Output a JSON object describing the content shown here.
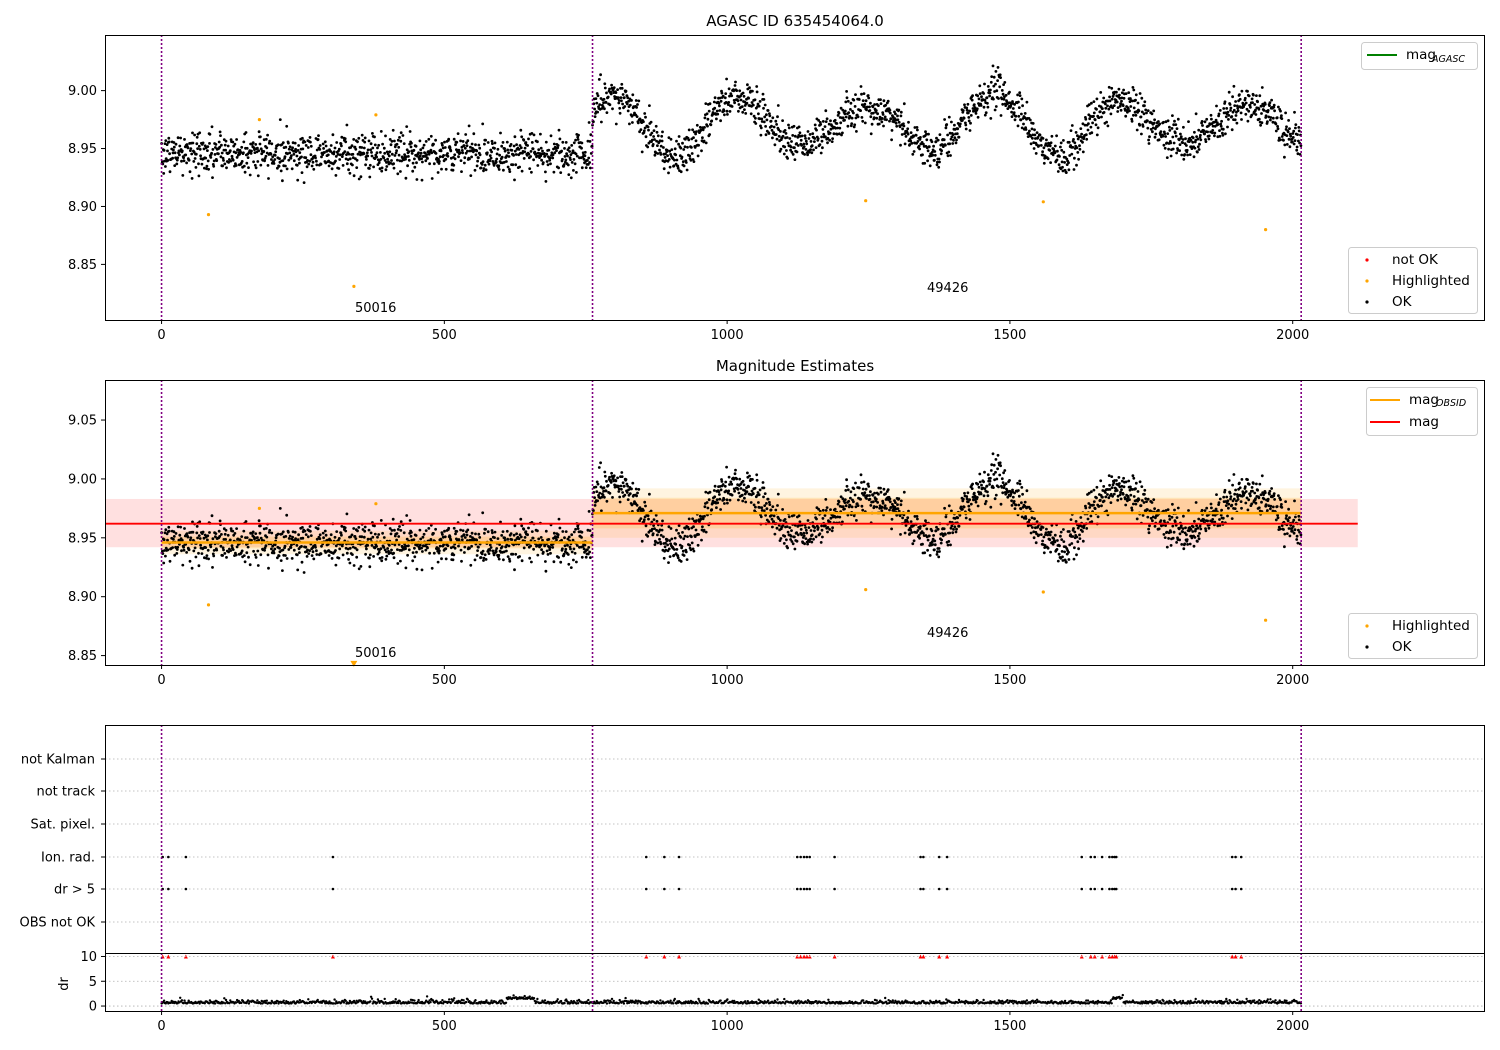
{
  "chart_data": [
    {
      "type": "scatter",
      "title": "AGASC ID 635454064.0",
      "xlim": [
        -100,
        2340
      ],
      "ylim": [
        8.802,
        9.048
      ],
      "x_ticks": [
        0,
        500,
        1000,
        1500,
        2000
      ],
      "y_ticks": [
        8.85,
        8.9,
        8.95,
        9.0
      ],
      "y_tick_labels": [
        "8.85",
        "8.90",
        "8.95",
        "9.00"
      ],
      "obs_boundaries": [
        0,
        762,
        2015
      ],
      "annotations": [
        {
          "text": "50016",
          "x": 340,
          "y": 8.81
        },
        {
          "text": "49426",
          "x": 1350,
          "y": 8.827
        }
      ],
      "mag_agasc_line": {
        "value": null,
        "color": "#008000"
      },
      "series": [
        {
          "name": "Highlighted",
          "color": "#ffa500",
          "points": [
            [
              83,
              8.893
            ],
            [
              173,
              8.975
            ],
            [
              340,
              8.831
            ],
            [
              379,
              8.979
            ],
            [
              1245,
              8.905
            ],
            [
              1559,
              8.904
            ],
            [
              1952,
              8.88
            ]
          ]
        },
        {
          "name": "OK",
          "color": "#000000",
          "segments": [
            {
              "x_start": 0,
              "x_end": 762,
              "baseline": 8.946,
              "spread": 0.009
            },
            {
              "x_start": 762,
              "x_end": 2015,
              "baseline": 8.971,
              "wave_amplitude": 0.028,
              "wave_period": 225,
              "spread": 0.008
            }
          ]
        },
        {
          "name": "not OK",
          "color": "#ff0000",
          "points": []
        }
      ],
      "legends": {
        "top_right": [
          {
            "label_main": "mag",
            "label_sub": "AGASC",
            "color": "#008000"
          }
        ],
        "bottom_right": [
          {
            "label": "not OK",
            "color": "#ff0000"
          },
          {
            "label": "Highlighted",
            "color": "#ffa500"
          },
          {
            "label": "OK",
            "color": "#000000"
          }
        ]
      }
    },
    {
      "type": "scatter",
      "title": "Magnitude Estimates",
      "xlim": [
        -100,
        2340
      ],
      "ylim": [
        8.842,
        9.084
      ],
      "x_ticks": [
        0,
        500,
        1000,
        1500,
        2000
      ],
      "y_ticks": [
        8.85,
        8.9,
        8.95,
        9.0,
        9.05
      ],
      "y_tick_labels": [
        "8.85",
        "8.90",
        "8.95",
        "9.00",
        "9.05"
      ],
      "obs_boundaries": [
        0,
        762,
        2015
      ],
      "annotations": [
        {
          "text": "50016",
          "x": 340,
          "y": 8.853
        },
        {
          "text": "49426",
          "x": 1350,
          "y": 8.869
        }
      ],
      "mag": {
        "value": 8.962,
        "band": [
          8.942,
          8.983
        ],
        "x_range": [
          -100,
          2115
        ],
        "color": "#ff0000"
      },
      "mag_obsid": [
        {
          "x_range": [
            0,
            762
          ],
          "value": 8.946,
          "band_inner": [
            8.941,
            8.951
          ],
          "band_outer": [
            8.936,
            8.956
          ]
        },
        {
          "x_range": [
            762,
            2015
          ],
          "value": 8.971,
          "band_inner": [
            8.958,
            8.984
          ],
          "band_outer": [
            8.95,
            8.992
          ]
        }
      ],
      "series": [
        {
          "name": "Highlighted",
          "color": "#ffa500",
          "points": [
            [
              83,
              8.893
            ],
            [
              173,
              8.975
            ],
            [
              379,
              8.979
            ],
            [
              1245,
              8.906
            ],
            [
              1559,
              8.904
            ],
            [
              1952,
              8.88
            ]
          ],
          "below_range": [
            [
              340,
              8.843
            ]
          ]
        },
        {
          "name": "OK",
          "color": "#000000",
          "segments": [
            {
              "x_start": 0,
              "x_end": 762,
              "baseline": 8.946,
              "spread": 0.009
            },
            {
              "x_start": 762,
              "x_end": 2015,
              "baseline": 8.971,
              "wave_amplitude": 0.028,
              "wave_period": 225,
              "spread": 0.008
            }
          ]
        }
      ],
      "legends": {
        "top_right": [
          {
            "label_main": "mag",
            "label_sub": "OBSID",
            "color": "#ffa500"
          },
          {
            "label_main": "mag",
            "label_sub": "",
            "color": "#ff0000"
          }
        ],
        "bottom_right": [
          {
            "label": "Highlighted",
            "color": "#ffa500"
          },
          {
            "label": "OK",
            "color": "#000000"
          }
        ]
      }
    },
    {
      "type": "scatter",
      "title": "",
      "xlim": [
        -100,
        2340
      ],
      "obs_boundaries": [
        0,
        762,
        2015
      ],
      "flag_rows": [
        "not Kalman",
        "not track",
        "Sat. pixel.",
        "Ion. rad.",
        "dr > 5",
        "OBS not OK"
      ],
      "flag_events": {
        "Ion. rad.": [
          2,
          12,
          43,
          303,
          857,
          889,
          915,
          1124,
          1130,
          1136,
          1141,
          1146,
          1190,
          1342,
          1347,
          1375,
          1389,
          1627,
          1643,
          1650,
          1663,
          1676,
          1681,
          1685,
          1688,
          1893,
          1899,
          1909
        ],
        "dr > 5": [
          2,
          12,
          43,
          303,
          857,
          889,
          915,
          1124,
          1130,
          1136,
          1141,
          1146,
          1190,
          1342,
          1347,
          1375,
          1389,
          1627,
          1643,
          1650,
          1663,
          1676,
          1681,
          1685,
          1688,
          1893,
          1899,
          1909
        ]
      },
      "dr_panel": {
        "ylabel": "dr",
        "y_ticks": [
          0,
          5,
          10
        ],
        "ylim": [
          -1,
          10.5
        ],
        "clipped_value": 10,
        "clipped_color": "#ff0000",
        "typical": 0.5
      }
    }
  ]
}
